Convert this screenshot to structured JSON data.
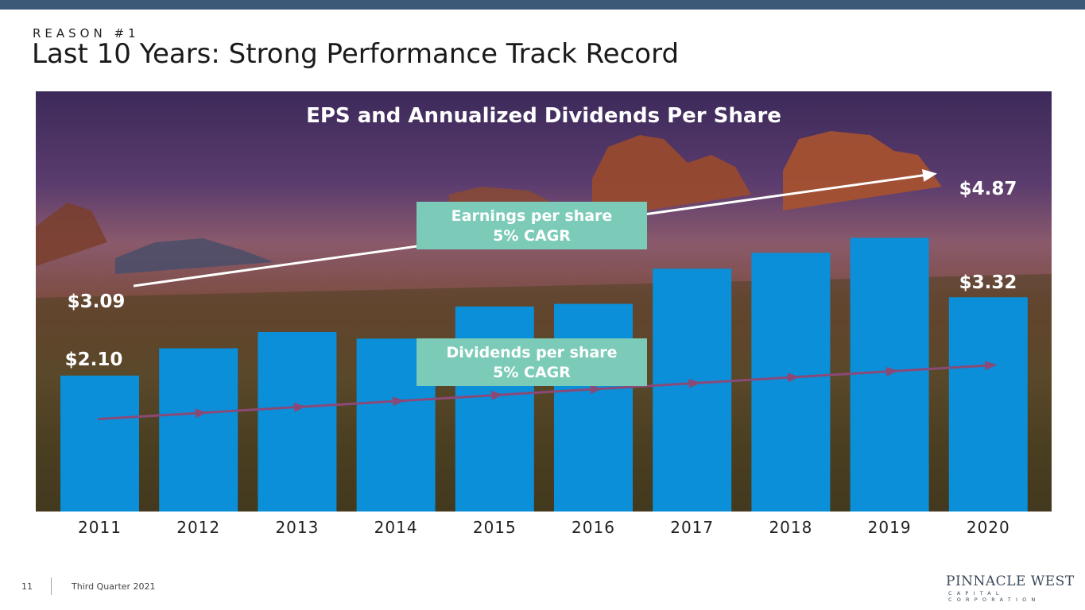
{
  "header": {
    "eyebrow": "REASON #1",
    "title": "Last 10 Years: Strong Performance Track Record"
  },
  "footer": {
    "page_number": "11",
    "period": "Third Quarter 2021",
    "logo_text": "PINNACLE WEST",
    "logo_subtext": "CAPITAL CORPORATION"
  },
  "colors": {
    "bar": "#0a8fd8",
    "eps_trend": "#ffffff",
    "dividend_trend": "#8a4a78",
    "callout_fill": "#7ccbb8",
    "header_bar": "#3c5a78"
  },
  "chart_data": {
    "type": "bar",
    "title": "EPS and Annualized Dividends Per Share",
    "categories": [
      "2011",
      "2012",
      "2013",
      "2014",
      "2015",
      "2016",
      "2017",
      "2018",
      "2019",
      "2020"
    ],
    "series": [
      {
        "values": [
          3.09,
          3.71,
          4.08,
          3.93,
          4.66,
          4.72,
          5.52,
          5.88,
          6.22,
          4.87
        ]
      }
    ],
    "data_labels": {
      "eps_start": "$3.09",
      "eps_end": "$4.87",
      "div_start": "$2.10",
      "div_end": "$3.32"
    },
    "annotations": [
      {
        "line1": "Earnings per share",
        "line2": "5% CAGR"
      },
      {
        "line1": "Dividends per share",
        "line2": "5% CAGR"
      }
    ],
    "dividend_trend_values": [
      2.1,
      2.18,
      2.27,
      2.37,
      2.47,
      2.56,
      2.7,
      2.87,
      3.04,
      3.32
    ],
    "ylim": [
      0,
      9.55
    ],
    "grid": false,
    "legend": "none"
  }
}
